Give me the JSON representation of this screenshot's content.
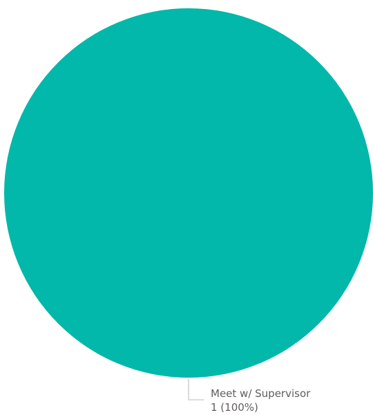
{
  "chart_data": {
    "type": "pie",
    "slices": [
      {
        "label": "Meet w/ Supervisor",
        "value": 1,
        "percent": 100,
        "color": "#01B8AA",
        "data_label": "1 (100%)"
      }
    ],
    "title": "",
    "legend": "none"
  },
  "colors": {
    "leader_line": "#C8C6C4",
    "label_text": "#605E5C"
  }
}
